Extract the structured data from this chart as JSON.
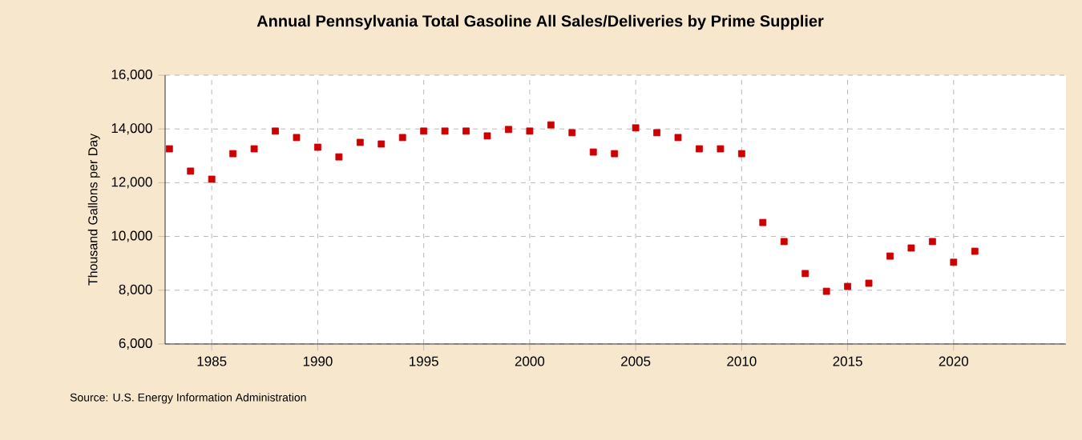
{
  "chart_data": {
    "type": "scatter",
    "title": "Annual Pennsylvania Total Gasoline All Sales/Deliveries by Prime Supplier",
    "ylabel": "Thousand Gallons per Day",
    "x": [
      1983,
      1984,
      1985,
      1986,
      1987,
      1988,
      1989,
      1990,
      1991,
      1992,
      1993,
      1994,
      1995,
      1996,
      1997,
      1998,
      1999,
      2000,
      2001,
      2002,
      2003,
      2004,
      2005,
      2006,
      2007,
      2008,
      2009,
      2010,
      2011,
      2012,
      2013,
      2014,
      2015,
      2016,
      2017,
      2018,
      2019,
      2020,
      2021
    ],
    "series": [
      {
        "color": "#cc0000",
        "values": [
          13260,
          12430,
          12130,
          13080,
          13260,
          13920,
          13680,
          13320,
          12960,
          13500,
          13440,
          13680,
          13920,
          13920,
          13920,
          13740,
          13980,
          13920,
          14150,
          13860,
          13140,
          13080,
          14040,
          13860,
          13680,
          13260,
          13260,
          13080,
          10520,
          9810,
          8620,
          7960,
          8140,
          8260,
          9270,
          9570,
          9810,
          9040,
          9450
        ]
      }
    ],
    "xlim": [
      1982.8,
      2025.3
    ],
    "ylim": [
      6000,
      16000
    ],
    "xticks": [
      1985,
      1990,
      1995,
      2000,
      2005,
      2010,
      2015,
      2020
    ],
    "yticks": [
      {
        "value": 6000,
        "label": "6,000"
      },
      {
        "value": 8000,
        "label": "8,000"
      },
      {
        "value": 10000,
        "label": "10,000"
      },
      {
        "value": 12000,
        "label": "12,000"
      },
      {
        "value": 14000,
        "label": "14,000"
      },
      {
        "value": 16000,
        "label": "16,000"
      }
    ],
    "grid": true,
    "marker": "square",
    "annotations": [
      "Source: U.S. Energy Information Administration"
    ]
  }
}
